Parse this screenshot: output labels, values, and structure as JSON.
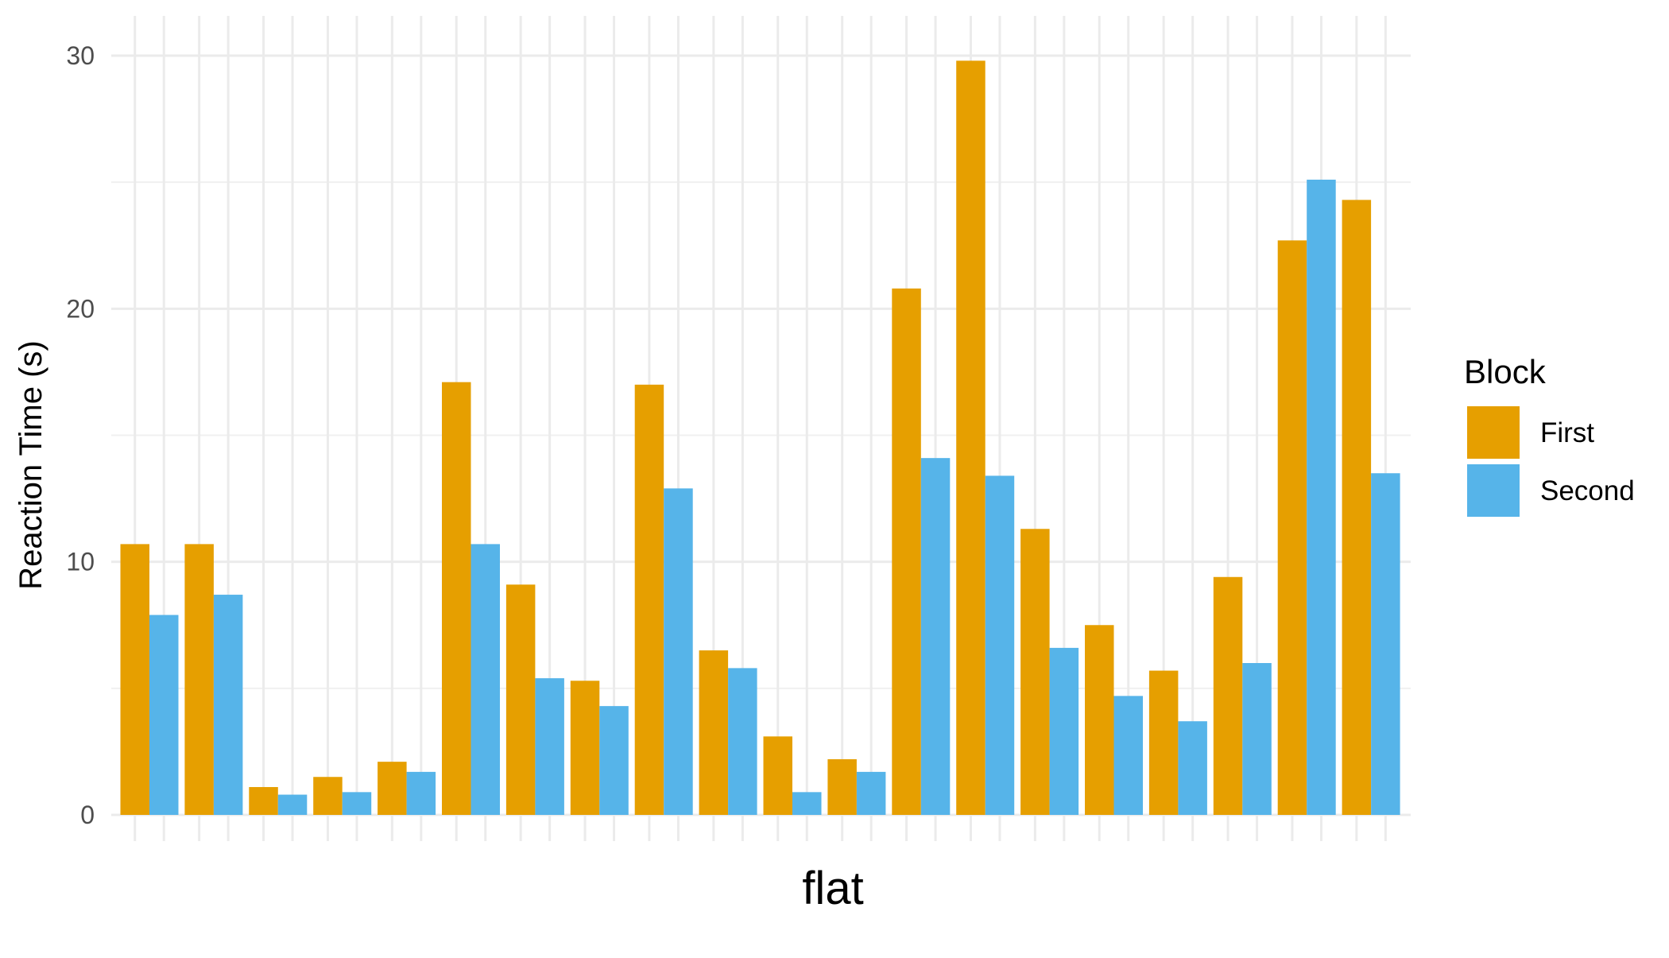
{
  "chart_data": {
    "type": "bar",
    "xlabel": "flat",
    "ylabel": "Reaction Time (s)",
    "ylim": [
      0,
      31.5
    ],
    "yticks": [
      0,
      10,
      20,
      30
    ],
    "ytick_labels": [
      "0",
      "10",
      "20",
      "30"
    ],
    "n_groups": 20,
    "grid": true,
    "legend": {
      "title": "Block",
      "position": "right"
    },
    "series": [
      {
        "name": "First",
        "color": "#E69F00",
        "values": [
          10.7,
          10.7,
          1.1,
          1.5,
          2.1,
          17.1,
          9.1,
          5.3,
          17.0,
          6.5,
          3.1,
          2.2,
          20.8,
          29.8,
          11.3,
          7.5,
          5.7,
          9.4,
          22.7,
          24.3
        ]
      },
      {
        "name": "Second",
        "color": "#56B4E9",
        "values": [
          7.9,
          8.7,
          0.8,
          0.9,
          1.7,
          10.7,
          5.4,
          4.3,
          12.9,
          5.8,
          0.9,
          1.7,
          14.1,
          13.4,
          6.6,
          4.7,
          3.7,
          6.0,
          25.1,
          13.5
        ]
      }
    ]
  }
}
